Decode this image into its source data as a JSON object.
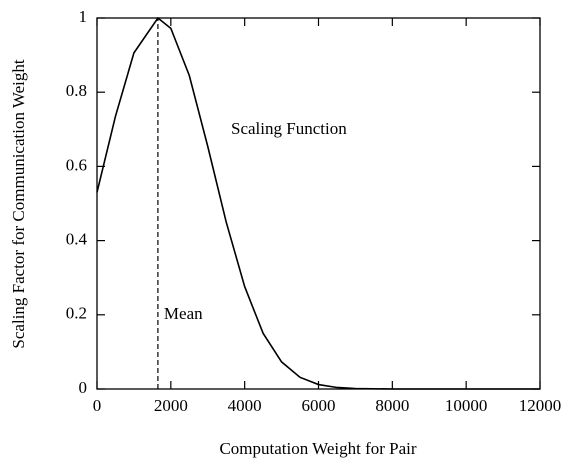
{
  "chart_data": {
    "type": "line",
    "xlabel": "Computation Weight for Pair",
    "ylabel": "Scaling Factor for Communication Weight",
    "x": [
      0,
      500,
      1000,
      1650,
      2000,
      2500,
      3000,
      3500,
      4000,
      4500,
      5000,
      5500,
      6000,
      6500,
      7000,
      8000,
      9000,
      10000,
      11000,
      12000
    ],
    "values": [
      0.53,
      0.735,
      0.906,
      1,
      0.972,
      0.845,
      0.654,
      0.45,
      0.276,
      0.15,
      0.073,
      0.0315,
      0.012,
      0.0041,
      0.0013,
      0,
      0,
      0,
      0,
      0
    ],
    "color": "#000000",
    "mean": 1650,
    "annotations": [
      "Scaling Function",
      "Mean"
    ],
    "xlim": [
      0,
      12000
    ],
    "xticks": [
      0,
      2000,
      4000,
      6000,
      8000,
      10000,
      12000
    ],
    "ylim": [
      0,
      1
    ],
    "yticks": [
      0,
      0.2,
      0.4,
      0.6,
      0.8,
      1
    ],
    "grid": false
  }
}
